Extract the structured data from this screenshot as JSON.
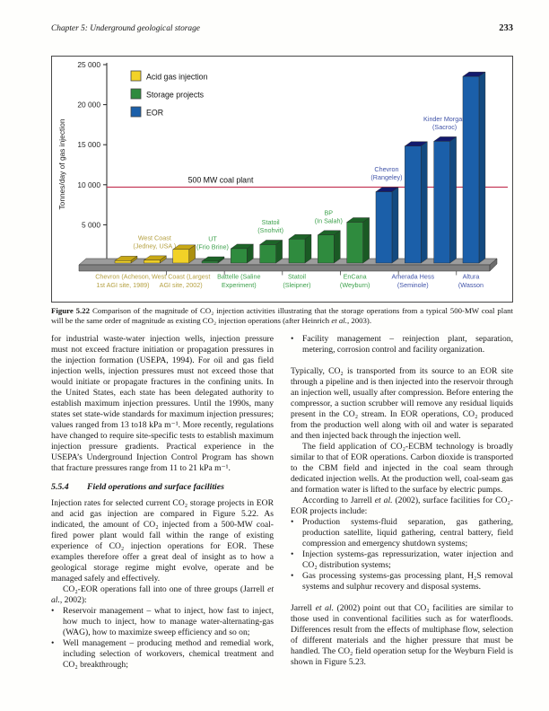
{
  "header": {
    "chapter": "Chapter 5: Underground geological storage",
    "page_number": "233"
  },
  "bullet_char": "•",
  "caption": {
    "runs": [
      {
        "b": "Figure 5.22"
      },
      " Comparison of the magnitude of CO₂ injection activities illustrating that the storage operations from a typical 500-MW coal plant will be the same order of magnitude as existing CO₂ injection operations (after Heinrich ",
      {
        "i": "et al."
      },
      ", 2003)."
    ]
  },
  "chart_data": {
    "type": "bar",
    "title": "",
    "xlabel": "",
    "ylabel": "Tonnes/day of gas injection",
    "ylim": [
      0,
      25000
    ],
    "yticks": [
      0,
      5000,
      10000,
      15000,
      20000,
      25000
    ],
    "ytick_labels": [
      "0",
      "5 000",
      "10 000",
      "15 000",
      "20 000",
      "25 000"
    ],
    "grid": false,
    "legend_position": "top-left-inside",
    "reference_line": {
      "value": 9700,
      "label": "500 MW coal plant",
      "color": "#c23050"
    },
    "legend": [
      {
        "label": "Acid gas injection",
        "color": "#f2d227"
      },
      {
        "label": "Storage projects",
        "color": "#2f8b3e"
      },
      {
        "label": "EOR",
        "color": "#1b5fa9"
      }
    ],
    "category_colors": {
      "acid": {
        "face": "#f2d227",
        "top": "#c8a816",
        "side": "#ab8f0f",
        "text": "#b5a041"
      },
      "storage": {
        "face": "#2f8b3e",
        "top": "#1d6428",
        "side": "#1a5a24",
        "text": "#3da14c"
      },
      "eor": {
        "face": "#1b5fa9",
        "top": "#131a6d",
        "side": "#134a80",
        "text": "#4053a8"
      }
    },
    "bars": [
      {
        "category": "acid",
        "value": 300,
        "label_pos": "below",
        "label_lines": [
          "Chevron (Acheson,",
          "1st AGI site, 1989)"
        ]
      },
      {
        "category": "acid",
        "value": 350,
        "label_pos": "above",
        "label_lines": [
          "West Coast",
          "(Jedney, USA )"
        ]
      },
      {
        "category": "acid",
        "value": 1700,
        "label_pos": "below",
        "label_lines": [
          "West Coast (Largest",
          "AGI site, 2002)"
        ]
      },
      {
        "category": "storage",
        "value": 170,
        "label_pos": "above",
        "label_lines": [
          "UT",
          "(Frio Brine)"
        ]
      },
      {
        "category": "storage",
        "value": 1800,
        "label_pos": "below",
        "label_lines": [
          "Battelle (Saline",
          "Experiment)"
        ]
      },
      {
        "category": "storage",
        "value": 2300,
        "label_pos": "above",
        "label_lines": [
          "Statoil",
          "(Snohvit)"
        ]
      },
      {
        "category": "storage",
        "value": 3000,
        "label_pos": "below",
        "label_lines": [
          "Statoil",
          "(Sleipner)"
        ]
      },
      {
        "category": "storage",
        "value": 3500,
        "label_pos": "above",
        "label_lines": [
          "BP",
          "(In Salah)"
        ]
      },
      {
        "category": "storage",
        "value": 5100,
        "label_pos": "below",
        "label_lines": [
          "EnCana",
          "(Weyburn)"
        ]
      },
      {
        "category": "eor",
        "value": 8900,
        "label_pos": "above",
        "label_lines": [
          "Chevron",
          "(Rangeley)"
        ]
      },
      {
        "category": "eor",
        "value": 14600,
        "label_pos": "below",
        "label_lines": [
          "Amerada Hess",
          "(Seminole)"
        ]
      },
      {
        "category": "eor",
        "value": 15200,
        "label_pos": "above",
        "label_lines": [
          "Kinder Morgan",
          "(Sacroc)"
        ]
      },
      {
        "category": "eor",
        "value": 23300,
        "label_pos": "below",
        "label_lines": [
          "Altura",
          "(Wasson"
        ]
      }
    ]
  },
  "columns": {
    "left": [
      {
        "type": "p",
        "runs": [
          "for industrial waste-water injection wells, injection pressure must not exceed fracture initiation or propagation pressures in the injection formation (USEPA, 1994). For oil and gas field injection wells, injection pressures must not exceed those that would initiate or propagate fractures in the confining units. In the United States, each state has been delegated authority to establish maximum injection pressures. Until the 1990s, many states set state-wide standards for maximum injection pressures; values ranged from 13 to18 kPa m⁻¹. More recently, regulations have changed to require site-specific tests to establish maximum injection pressure gradients. Practical experience in the USEPA’s Underground Injection Control Program has shown that fracture pressures range from 11 to 21 kPa m⁻¹."
        ]
      },
      {
        "type": "heading",
        "num": "5.5.4",
        "title": "Field operations and surface facilities"
      },
      {
        "type": "p",
        "runs": [
          "Injection rates for selected current CO₂ storage projects in EOR and acid gas injection are compared in Figure 5.22. As indicated, the amount of CO₂ injected from a 500-MW coal-fired power plant would fall within the range of existing experience of CO₂ injection operations for EOR. These examples therefore offer a great deal of insight as to how a geological storage regime might evolve, operate and be managed safely and effectively."
        ]
      },
      {
        "type": "p",
        "indent": true,
        "runs": [
          "CO₂-EOR operations fall into one of three groups (Jarrell ",
          {
            "i": "et al."
          },
          ", 2002):"
        ]
      },
      {
        "type": "bullet",
        "runs": [
          "Reservoir management – what to inject, how fast to inject, how much to inject, how to manage water-alternating-gas (WAG), how to maximize sweep efficiency and so on;"
        ]
      },
      {
        "type": "bullet",
        "runs": [
          "Well management – producing method and remedial work, including selection of workovers, chemical treatment and CO₂ breakthrough;"
        ]
      }
    ],
    "right": [
      {
        "type": "bullet",
        "runs": [
          "Facility management – reinjection plant, separation, metering, corrosion control and facility organization."
        ]
      },
      {
        "type": "p",
        "space": true,
        "runs": [
          "Typically, CO₂ is transported from its source to an EOR site through a pipeline and is then injected into the reservoir through an injection well, usually after compression. Before entering the compressor, a suction scrubber will remove any residual liquids present in the CO₂ stream. In EOR operations, CO₂ produced from the production well along with oil and water is separated and then injected back through the injection well."
        ]
      },
      {
        "type": "p",
        "indent": true,
        "runs": [
          "The field application of CO₂-ECBM technology is broadly similar to that of EOR operations. Carbon dioxide is transported to the CBM field and injected in the coal seam through dedicated injection wells. At the production well, coal-seam gas and formation water is lifted to the surface by electric pumps."
        ]
      },
      {
        "type": "p",
        "indent": true,
        "runs": [
          "According to Jarrell ",
          {
            "i": "et al."
          },
          " (2002), surface facilities for CO₂-EOR projects include:"
        ]
      },
      {
        "type": "bullet",
        "runs": [
          "Production systems-fluid separation, gas gathering, production satellite, liquid gathering, central battery, field compression and emergency shutdown systems;"
        ]
      },
      {
        "type": "bullet",
        "runs": [
          "Injection systems-gas repressurization, water injection and CO₂ distribution systems;"
        ]
      },
      {
        "type": "bullet",
        "runs": [
          "Gas processing systems-gas processing plant, H₂S removal systems and sulphur recovery and disposal systems."
        ]
      },
      {
        "type": "p",
        "space": true,
        "runs": [
          "Jarrell ",
          {
            "i": "et al."
          },
          " (2002) point out that CO₂ facilities are similar to those used in conventional facilities such as for waterfloods. Differences result from the effects of multiphase flow, selection of different materials and the higher pressure that must be handled. The CO₂ field operation setup for the Weyburn Field is shown in Figure 5.23."
        ]
      }
    ]
  }
}
